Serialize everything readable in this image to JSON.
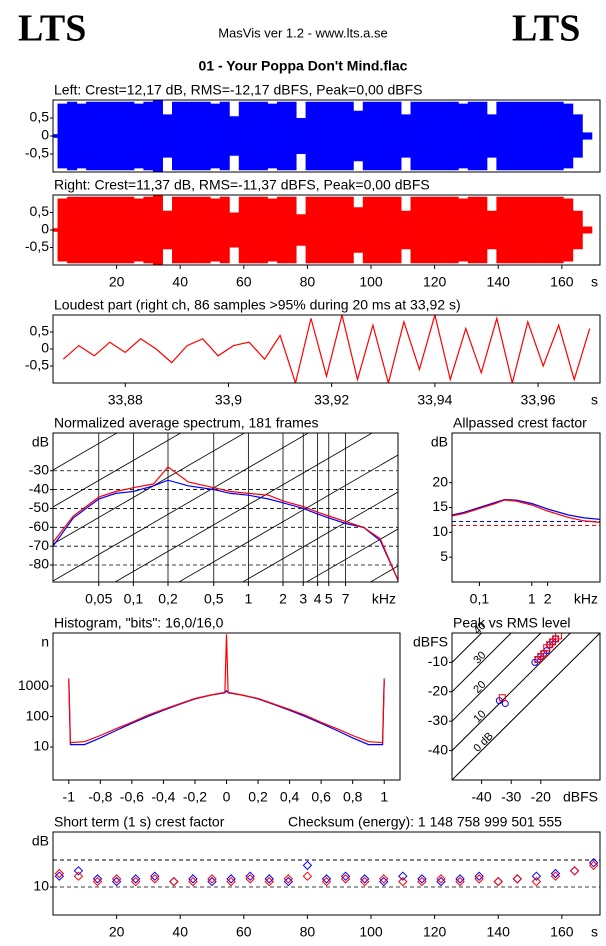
{
  "header": {
    "logo_left": "LTS",
    "logo_right": "LTS",
    "version": "MasVis ver 1.2 - www.lts.a.se",
    "file": "01 - Your Poppa Don't Mind.flac"
  },
  "chart_data": [
    {
      "type": "waveform",
      "title": "Left: Crest=12,17 dB, RMS=-12,17 dBFS, Peak=0,00 dBFS",
      "xlim": [
        0,
        172
      ],
      "ylim": [
        -1,
        1
      ],
      "yticks": [
        {
          "value": 0.5,
          "label": "0,5"
        },
        0,
        {
          "value": -0.5,
          "label": "-0,5"
        }
      ],
      "series": [
        {
          "color": "#0000ff",
          "x": [
            0,
            3,
            6,
            9,
            12,
            15,
            18,
            21,
            24,
            27,
            30,
            33,
            36,
            39,
            42,
            45,
            48,
            51,
            54,
            57,
            60,
            63,
            66,
            69,
            72,
            75,
            78,
            81,
            84,
            87,
            90,
            93,
            96,
            99,
            102,
            105,
            108,
            111,
            114,
            117,
            120,
            123,
            126,
            129,
            132,
            135,
            138,
            141,
            144,
            147,
            150,
            153,
            156,
            159,
            162,
            165,
            168
          ],
          "values": [
            0.05,
            0.9,
            0.95,
            0.9,
            0.95,
            0.95,
            0.95,
            0.95,
            0.95,
            0.9,
            0.95,
            1,
            0.6,
            0.95,
            0.95,
            0.95,
            0.95,
            0.9,
            0.95,
            0.55,
            0.95,
            0.95,
            0.95,
            0.9,
            0.95,
            0.95,
            0.5,
            0.95,
            0.95,
            0.95,
            0.95,
            0.95,
            0.7,
            0.95,
            0.95,
            0.95,
            0.95,
            0.6,
            0.95,
            0.95,
            0.95,
            0.95,
            0.95,
            0.9,
            0.95,
            0.95,
            0.6,
            0.95,
            0.95,
            0.95,
            0.95,
            0.95,
            0.95,
            0.95,
            0.9,
            0.6,
            0.1
          ]
        }
      ]
    },
    {
      "type": "waveform",
      "title": "Right: Crest=11,37 dB, RMS=-11,37 dBFS, Peak=0,00 dBFS",
      "xlim": [
        0,
        172
      ],
      "ylim": [
        -1,
        1
      ],
      "x_unit": "s",
      "xticks": [
        20,
        40,
        60,
        80,
        100,
        120,
        140,
        160
      ],
      "yticks": [
        {
          "value": 0.5,
          "label": "0,5"
        },
        0,
        {
          "value": -0.5,
          "label": "-0,5"
        }
      ],
      "series": [
        {
          "color": "#ff0000",
          "x": [
            0,
            3,
            6,
            9,
            12,
            15,
            18,
            21,
            24,
            27,
            30,
            33,
            36,
            39,
            42,
            45,
            48,
            51,
            54,
            57,
            60,
            63,
            66,
            69,
            72,
            75,
            78,
            81,
            84,
            87,
            90,
            93,
            96,
            99,
            102,
            105,
            108,
            111,
            114,
            117,
            120,
            123,
            126,
            129,
            132,
            135,
            138,
            141,
            144,
            147,
            150,
            153,
            156,
            159,
            162,
            165,
            168
          ],
          "values": [
            0.05,
            0.9,
            0.95,
            0.95,
            0.95,
            0.95,
            0.95,
            0.95,
            0.95,
            0.9,
            0.95,
            1,
            0.55,
            0.95,
            0.95,
            0.95,
            0.95,
            0.9,
            0.95,
            0.5,
            0.95,
            0.95,
            0.95,
            0.9,
            0.95,
            0.95,
            0.45,
            0.95,
            0.95,
            0.95,
            0.95,
            0.95,
            0.65,
            0.95,
            0.95,
            0.95,
            0.95,
            0.55,
            0.95,
            0.95,
            0.95,
            0.95,
            0.95,
            0.9,
            0.95,
            0.95,
            0.55,
            0.95,
            0.95,
            0.95,
            0.95,
            0.95,
            0.95,
            0.95,
            0.9,
            0.55,
            0.1
          ]
        }
      ]
    },
    {
      "type": "line",
      "title": "Loudest part (right ch, 86 samples >95% during 20 ms at 33,92 s)",
      "xlim": [
        33.866,
        33.972
      ],
      "ylim": [
        -1,
        1
      ],
      "x_unit": "s",
      "xticks": [
        {
          "value": 33.88,
          "label": "33,88"
        },
        {
          "value": 33.9,
          "label": "33,9"
        },
        {
          "value": 33.92,
          "label": "33,92"
        },
        {
          "value": 33.94,
          "label": "33,94"
        },
        {
          "value": 33.96,
          "label": "33,96"
        }
      ],
      "yticks": [
        {
          "value": 0.5,
          "label": "0,5"
        },
        0,
        {
          "value": -0.5,
          "label": "-0,5"
        }
      ],
      "series": [
        {
          "color": "#ff0000",
          "x": [
            33.868,
            33.871,
            33.874,
            33.877,
            33.88,
            33.883,
            33.886,
            33.889,
            33.892,
            33.895,
            33.898,
            33.901,
            33.904,
            33.907,
            33.91,
            33.913,
            33.916,
            33.919,
            33.922,
            33.925,
            33.928,
            33.931,
            33.934,
            33.937,
            33.94,
            33.943,
            33.946,
            33.949,
            33.952,
            33.955,
            33.958,
            33.961,
            33.964,
            33.967,
            33.97
          ],
          "values": [
            -0.3,
            0.1,
            -0.2,
            0.2,
            -0.1,
            0.3,
            0,
            -0.4,
            0.1,
            0.3,
            -0.2,
            0.1,
            0.2,
            -0.3,
            0.4,
            -1,
            0.9,
            -0.8,
            1,
            -0.9,
            0.7,
            -1,
            0.8,
            -0.6,
            1,
            -0.9,
            0.6,
            -0.7,
            0.9,
            -1,
            0.8,
            -0.5,
            0.7,
            -0.9,
            0.6
          ]
        }
      ]
    },
    {
      "type": "line",
      "title": "Normalized average spectrum, 181 frames",
      "xlog": true,
      "xlim": [
        0.02,
        20
      ],
      "ylim": [
        -89,
        -10
      ],
      "x_unit": "kHz",
      "y_unit": "dB",
      "grid": true,
      "diagonal_decor": true,
      "xticks": [
        {
          "value": 0.05,
          "label": "0,05"
        },
        {
          "value": 0.1,
          "label": "0,1"
        },
        {
          "value": 0.2,
          "label": "0,2"
        },
        {
          "value": 0.5,
          "label": "0,5"
        },
        1,
        2,
        3,
        4,
        5,
        7
      ],
      "yticks": [
        -30,
        -40,
        -50,
        -60,
        -70,
        -80
      ],
      "series": [
        {
          "color": "#0000ff",
          "x": [
            0.02,
            0.03,
            0.05,
            0.07,
            0.1,
            0.15,
            0.2,
            0.3,
            0.5,
            0.7,
            1,
            1.5,
            2,
            3,
            4,
            5,
            7,
            10,
            14,
            20
          ],
          "values": [
            -70,
            -55,
            -45,
            -42,
            -41,
            -38,
            -35,
            -38,
            -40,
            -42,
            -43,
            -45,
            -47,
            -50,
            -53,
            -55,
            -58,
            -60,
            -67,
            -88
          ]
        },
        {
          "color": "#ff0000",
          "x": [
            0.02,
            0.03,
            0.05,
            0.07,
            0.1,
            0.15,
            0.2,
            0.3,
            0.5,
            0.7,
            1,
            1.5,
            2,
            3,
            4,
            5,
            7,
            10,
            14,
            20
          ],
          "values": [
            -68,
            -54,
            -44,
            -41,
            -39,
            -37,
            -28,
            -36,
            -39,
            -41,
            -42,
            -43,
            -46,
            -49,
            -52,
            -54,
            -57,
            -60,
            -66,
            -88
          ]
        }
      ]
    },
    {
      "type": "line",
      "title": "Allpassed crest factor",
      "xlog": true,
      "xlim": [
        0.03,
        20
      ],
      "ylim": [
        0,
        30
      ],
      "x_unit": "kHz",
      "y_unit": "dB",
      "xticks": [
        {
          "value": 0.1,
          "label": "0,1"
        },
        1,
        2
      ],
      "yticks": [
        5,
        10,
        15,
        20
      ],
      "reference_lines": [
        {
          "value": 12.17,
          "color": "#0000ff"
        },
        {
          "value": 11.37,
          "color": "#ff0000"
        }
      ],
      "series": [
        {
          "color": "#0000ff",
          "x": [
            0.03,
            0.05,
            0.1,
            0.2,
            0.3,
            0.5,
            1,
            2,
            5,
            10,
            20
          ],
          "values": [
            13.5,
            14,
            15,
            16,
            16.6,
            16.5,
            15.8,
            14.7,
            13.5,
            12.9,
            12.6
          ]
        },
        {
          "color": "#ff0000",
          "x": [
            0.03,
            0.05,
            0.1,
            0.2,
            0.3,
            0.5,
            1,
            2,
            5,
            10,
            20
          ],
          "values": [
            13.3,
            13.8,
            14.8,
            15.8,
            16.5,
            16.3,
            15.5,
            14.3,
            13,
            12.3,
            12
          ]
        }
      ]
    },
    {
      "type": "line",
      "title": "Histogram, \"bits\": 16,0/16,0",
      "ylog": true,
      "xlim": [
        -1.1,
        1.1
      ],
      "ylim": [
        0.83,
        55000
      ],
      "y_unit": "n",
      "xticks": [
        -1,
        {
          "value": -0.8,
          "label": "-0,8"
        },
        {
          "value": -0.6,
          "label": "-0,6"
        },
        {
          "value": -0.4,
          "label": "-0,4"
        },
        {
          "value": -0.2,
          "label": "-0,2"
        },
        0,
        {
          "value": 0.2,
          "label": "0,2"
        },
        {
          "value": 0.4,
          "label": "0,4"
        },
        {
          "value": 0.6,
          "label": "0,6"
        },
        {
          "value": 0.8,
          "label": "0,8"
        },
        1
      ],
      "yticks": [
        10,
        100,
        1000
      ],
      "series": [
        {
          "color": "#0000ff",
          "x": [
            -1,
            -0.99,
            -0.9,
            -0.8,
            -0.7,
            -0.6,
            -0.5,
            -0.4,
            -0.3,
            -0.2,
            -0.1,
            -0.01,
            0,
            0.01,
            0.1,
            0.2,
            0.3,
            0.4,
            0.5,
            0.6,
            0.7,
            0.8,
            0.9,
            0.99,
            1
          ],
          "values": [
            1500,
            12,
            12,
            20,
            35,
            60,
            100,
            160,
            250,
            380,
            500,
            600,
            700,
            600,
            500,
            380,
            250,
            160,
            100,
            60,
            35,
            20,
            12,
            12,
            1500
          ]
        },
        {
          "color": "#ff0000",
          "x": [
            -1,
            -0.99,
            -0.9,
            -0.8,
            -0.7,
            -0.6,
            -0.5,
            -0.4,
            -0.3,
            -0.2,
            -0.1,
            -0.01,
            0,
            0.01,
            0.1,
            0.2,
            0.3,
            0.4,
            0.5,
            0.6,
            0.7,
            0.8,
            0.9,
            0.99,
            1
          ],
          "values": [
            1800,
            14,
            15,
            24,
            40,
            65,
            110,
            170,
            260,
            390,
            510,
            620,
            50000,
            620,
            510,
            390,
            260,
            170,
            110,
            65,
            40,
            24,
            15,
            14,
            1800
          ]
        }
      ]
    },
    {
      "type": "scatter",
      "title": "Peak vs RMS level",
      "xlim": [
        -50,
        0
      ],
      "ylim": [
        -50,
        0
      ],
      "x_unit": "dBFS",
      "y_unit": "dBFS",
      "xticks": [
        -40,
        -30,
        -20
      ],
      "yticks": [
        -10,
        -20,
        -30,
        -40
      ],
      "diagonals": [
        {
          "value": 40,
          "label": "40"
        },
        {
          "value": 30,
          "label": "30"
        },
        {
          "value": 20,
          "label": "20"
        },
        {
          "value": 10,
          "label": "10"
        },
        {
          "value": 0,
          "label": "0 dB"
        }
      ],
      "series": [
        {
          "color": "#0000ff",
          "marker": "circle",
          "x": [
            -22,
            -21,
            -20,
            -19,
            -18,
            -17,
            -16,
            -15,
            -34,
            -32
          ],
          "values": [
            -10,
            -9,
            -8,
            -7,
            -6,
            -4,
            -3,
            -2,
            -23,
            -24
          ]
        },
        {
          "color": "#ff0000",
          "marker": "square",
          "x": [
            -21,
            -20,
            -19,
            -18,
            -17,
            -16,
            -15,
            -14,
            -33
          ],
          "values": [
            -9,
            -8,
            -7,
            -5,
            -4,
            -3,
            -2,
            -1,
            -22
          ]
        }
      ]
    },
    {
      "type": "scatter",
      "title": "Short term (1 s) crest factor",
      "annotation": "Checksum (energy):  1 148 758 999 501 555",
      "xlim": [
        0,
        172
      ],
      "ylim": [
        4.8,
        20.2
      ],
      "x_unit": "s",
      "y_unit": "dB",
      "xticks": [
        20,
        40,
        60,
        80,
        100,
        120,
        140,
        160
      ],
      "yticks": [
        10
      ],
      "grid": true,
      "reference_lines": [
        {
          "value": 15,
          "color": "#000000"
        }
      ],
      "series": [
        {
          "color": "#0000ff",
          "marker": "diamond",
          "x": [
            2,
            8,
            14,
            20,
            26,
            32,
            38,
            44,
            50,
            56,
            62,
            68,
            74,
            80,
            86,
            92,
            98,
            104,
            110,
            116,
            122,
            128,
            134,
            140,
            146,
            152,
            158,
            164,
            170
          ],
          "values": [
            12,
            13,
            11.5,
            11,
            11.5,
            12,
            11,
            11.5,
            11,
            11.5,
            12,
            11.5,
            11,
            14,
            11.5,
            12,
            11.5,
            11,
            12,
            11.5,
            11,
            11.5,
            12,
            11,
            11.5,
            12,
            12.5,
            13,
            14.5
          ]
        },
        {
          "color": "#ff0000",
          "marker": "diamond",
          "x": [
            2,
            8,
            14,
            20,
            26,
            32,
            38,
            44,
            50,
            56,
            62,
            68,
            74,
            80,
            86,
            92,
            98,
            104,
            110,
            116,
            122,
            128,
            134,
            140,
            146,
            152,
            158,
            164,
            170
          ],
          "values": [
            12.5,
            12,
            11,
            11.5,
            11,
            11.5,
            11,
            11,
            11.5,
            11,
            11.5,
            11,
            11.5,
            12,
            11,
            11.5,
            11,
            11.5,
            11,
            11,
            11.5,
            11,
            11.5,
            11,
            11.5,
            11,
            12,
            13,
            14
          ]
        }
      ]
    }
  ]
}
